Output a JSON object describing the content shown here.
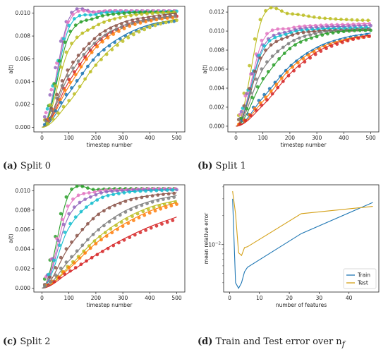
{
  "captions": [
    {
      "tag": "(a)",
      "text": "Split 0"
    },
    {
      "tag": "(b)",
      "text": "Split 1"
    },
    {
      "tag": "(c)",
      "text": "Split 2"
    },
    {
      "tag": "(d)",
      "text": "Train and Test error over n",
      "sub": "f"
    }
  ],
  "chart_data": [
    {
      "type": "line+scatter",
      "xlabel": "timestep number",
      "ylabel": "a(t)",
      "xlim": [
        -30,
        530
      ],
      "ylim": [
        -0.0004,
        0.0106
      ],
      "xticks": [
        0,
        100,
        200,
        300,
        400,
        500
      ],
      "yticks": [
        0.0,
        0.002,
        0.004,
        0.006,
        0.008,
        0.01
      ],
      "ytick_labels": [
        "0.000",
        "0.002",
        "0.004",
        "0.006",
        "0.008",
        "0.010"
      ],
      "series": [
        {
          "color": "#9467bd",
          "values": [
            0.0,
            0.0095,
            0.0101,
            0.0102,
            0.0102,
            0.0102
          ]
        },
        {
          "color": "#e377c2",
          "values": [
            0.0,
            0.0092,
            0.0101,
            0.0102,
            0.0102,
            0.0102
          ]
        },
        {
          "color": "#17becf",
          "values": [
            0.0,
            0.0087,
            0.0099,
            0.0101,
            0.0101,
            0.0102
          ]
        },
        {
          "color": "#2ca02c",
          "values": [
            0.0,
            0.008,
            0.0096,
            0.01,
            0.0101,
            0.0101
          ]
        },
        {
          "color": "#bcbd22",
          "values": [
            0.0,
            0.0068,
            0.0089,
            0.0097,
            0.01,
            0.0101
          ]
        },
        {
          "color": "#8c564b",
          "values": [
            0.0,
            0.005,
            0.0079,
            0.0092,
            0.0097,
            0.01
          ]
        },
        {
          "color": "#d62728",
          "values": [
            0.0,
            0.004,
            0.0073,
            0.0089,
            0.0095,
            0.0098
          ]
        },
        {
          "color": "#ff7f0e",
          "values": [
            0.0,
            0.0036,
            0.007,
            0.0087,
            0.0094,
            0.0097
          ]
        },
        {
          "color": "#1f77b4",
          "values": [
            0.0,
            0.003,
            0.0062,
            0.008,
            0.009,
            0.0094
          ]
        },
        {
          "color": "#7f7f7f",
          "values": [
            0.0,
            0.0045,
            0.0075,
            0.0089,
            0.0095,
            0.0098
          ]
        },
        {
          "color": "#bcbd22",
          "values": [
            0.0,
            0.0022,
            0.0055,
            0.0077,
            0.0089,
            0.0095
          ]
        }
      ],
      "x": [
        0,
        100,
        200,
        300,
        400,
        500
      ]
    },
    {
      "type": "line+scatter",
      "xlabel": "timestep number",
      "ylabel": "a(t)",
      "xlim": [
        -30,
        530
      ],
      "ylim": [
        -0.0006,
        0.0126
      ],
      "xticks": [
        0,
        100,
        200,
        300,
        400,
        500
      ],
      "yticks": [
        0.0,
        0.002,
        0.004,
        0.006,
        0.008,
        0.01,
        0.012
      ],
      "ytick_labels": [
        "0.000",
        "0.002",
        "0.004",
        "0.006",
        "0.008",
        "0.010",
        "0.012"
      ],
      "series": [
        {
          "color": "#bcbd22",
          "values": [
            0.0,
            0.0115,
            0.0118,
            0.0114,
            0.0112,
            0.0111
          ]
        },
        {
          "color": "#e377c2",
          "values": [
            0.0,
            0.009,
            0.0103,
            0.0106,
            0.0107,
            0.0108
          ]
        },
        {
          "color": "#9467bd",
          "values": [
            0.0,
            0.0083,
            0.01,
            0.0104,
            0.0105,
            0.0106
          ]
        },
        {
          "color": "#17becf",
          "values": [
            0.0,
            0.008,
            0.0098,
            0.0102,
            0.0103,
            0.0104
          ]
        },
        {
          "color": "#8c564b",
          "values": [
            0.0,
            0.0074,
            0.0095,
            0.01,
            0.0101,
            0.0102
          ]
        },
        {
          "color": "#7f7f7f",
          "values": [
            0.0,
            0.006,
            0.0088,
            0.0098,
            0.0101,
            0.0102
          ]
        },
        {
          "color": "#2ca02c",
          "values": [
            0.0,
            0.0048,
            0.0082,
            0.0095,
            0.01,
            0.0101
          ]
        },
        {
          "color": "#1f77b4",
          "values": [
            0.0,
            0.003,
            0.0063,
            0.0083,
            0.0093,
            0.0098
          ]
        },
        {
          "color": "#ff7f0e",
          "values": [
            0.0,
            0.0026,
            0.006,
            0.0081,
            0.0091,
            0.0096
          ]
        },
        {
          "color": "#d62728",
          "values": [
            0.0,
            0.0022,
            0.0055,
            0.0078,
            0.009,
            0.0096
          ]
        }
      ],
      "x": [
        0,
        100,
        200,
        300,
        400,
        500
      ]
    },
    {
      "type": "line+scatter",
      "xlabel": "timestep number",
      "ylabel": "a(t)",
      "xlim": [
        -30,
        530
      ],
      "ylim": [
        -0.0004,
        0.0106
      ],
      "xticks": [
        0,
        100,
        200,
        300,
        400,
        500
      ],
      "yticks": [
        0.0,
        0.002,
        0.004,
        0.006,
        0.008,
        0.01
      ],
      "ytick_labels": [
        "0.000",
        "0.002",
        "0.004",
        "0.006",
        "0.008",
        "0.010"
      ],
      "series": [
        {
          "color": "#2ca02c",
          "values": [
            0.0,
            0.0096,
            0.0101,
            0.0102,
            0.0102,
            0.0102
          ]
        },
        {
          "color": "#e377c2",
          "values": [
            0.0,
            0.0084,
            0.0099,
            0.0101,
            0.0102,
            0.0102
          ]
        },
        {
          "color": "#9467bd",
          "values": [
            0.0,
            0.0074,
            0.0096,
            0.01,
            0.0101,
            0.0101
          ]
        },
        {
          "color": "#17becf",
          "values": [
            0.0,
            0.0062,
            0.009,
            0.0098,
            0.01,
            0.0101
          ]
        },
        {
          "color": "#8c564b",
          "values": [
            0.0,
            0.0042,
            0.0074,
            0.0089,
            0.0095,
            0.0098
          ]
        },
        {
          "color": "#bcbd22",
          "values": [
            0.0,
            0.0022,
            0.005,
            0.007,
            0.0083,
            0.009
          ]
        },
        {
          "color": "#ff7f0e",
          "values": [
            0.0,
            0.002,
            0.0046,
            0.0065,
            0.0079,
            0.0088
          ]
        },
        {
          "color": "#d62728",
          "values": [
            0.0,
            0.0016,
            0.0034,
            0.005,
            0.0063,
            0.0073
          ]
        },
        {
          "color": "#7f7f7f",
          "values": [
            0.0,
            0.0028,
            0.0058,
            0.0078,
            0.0089,
            0.0095
          ]
        }
      ],
      "x": [
        0,
        100,
        200,
        300,
        400,
        500
      ]
    },
    {
      "type": "line",
      "xlabel": "number of features",
      "ylabel": "mean relative error",
      "yscale": "log",
      "xlim": [
        -2,
        50
      ],
      "ylim": [
        0.0032,
        0.042
      ],
      "xticks": [
        0,
        10,
        20,
        30,
        40
      ],
      "ytick_label": "10^-2",
      "legend_loc": "lower right",
      "x": [
        1,
        2,
        3,
        4,
        5,
        6,
        24,
        48
      ],
      "series": [
        {
          "name": "Train",
          "color": "#1f77b4",
          "values": [
            0.03,
            0.004,
            0.0035,
            0.004,
            0.0052,
            0.0058,
            0.013,
            0.0275
          ]
        },
        {
          "name": "Test",
          "color": "#d4a017",
          "values": [
            0.036,
            0.021,
            0.0082,
            0.0077,
            0.0093,
            0.0095,
            0.021,
            0.025
          ]
        }
      ]
    }
  ]
}
